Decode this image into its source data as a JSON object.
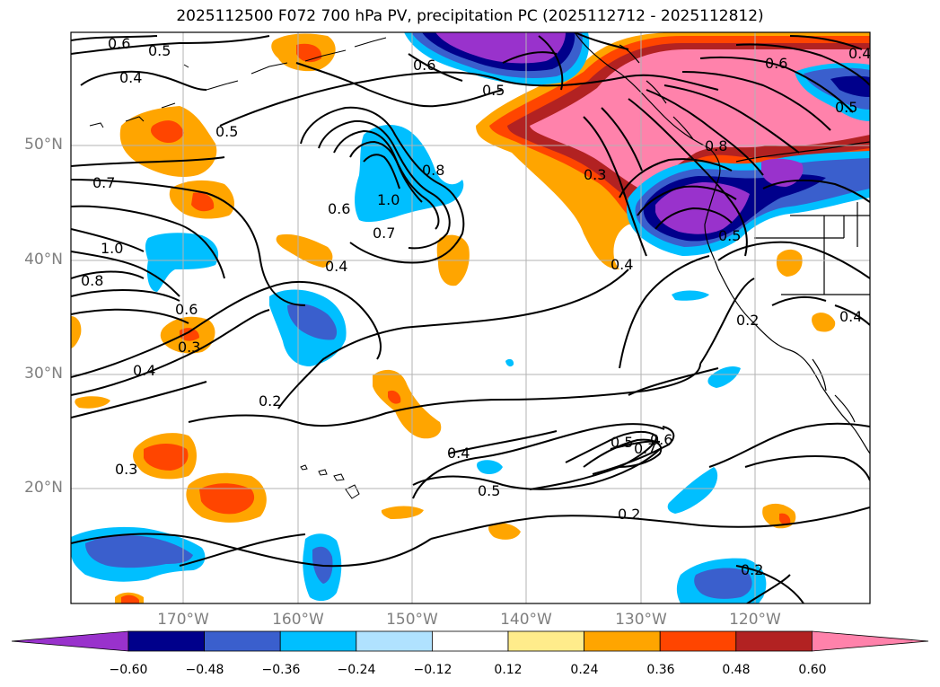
{
  "title": "2025112500 F072 700 hPa PV, precipitation PC (2025112712 - 2025112812)",
  "axes": {
    "lat_labels": [
      "50°N",
      "40°N",
      "30°N",
      "20°N"
    ],
    "lon_labels": [
      "170°W",
      "160°W",
      "150°W",
      "140°W",
      "130°W",
      "120°W"
    ]
  },
  "colorbar": {
    "ticks": [
      "−0.60",
      "−0.48",
      "−0.36",
      "−0.24",
      "−0.12",
      "0.12",
      "0.24",
      "0.36",
      "0.48",
      "0.60"
    ],
    "colors": [
      "#9932cc",
      "#00008b",
      "#3a5fcd",
      "#00bfff",
      "#b0e2ff",
      "#ffffff",
      "#ffec8b",
      "#ffa500",
      "#ff4500",
      "#b22222",
      "#ff82ab"
    ]
  },
  "contour_labels": [
    "0.6",
    "0.5",
    "0.4",
    "0.5",
    "0.7",
    "1.0",
    "0.8",
    "0.6",
    "0.3",
    "0.4",
    "0.6",
    "1.0",
    "0.7",
    "0.8",
    "0.4",
    "0.6",
    "0.5",
    "0.3",
    "0.8",
    "0.5",
    "0.4",
    "0.2",
    "0.4",
    "0.2",
    "0.3",
    "0.4",
    "0.5",
    "0.6",
    "0.7",
    "0.5",
    "0.2",
    "0.2",
    "0.6",
    "0.5",
    "0.4"
  ]
}
